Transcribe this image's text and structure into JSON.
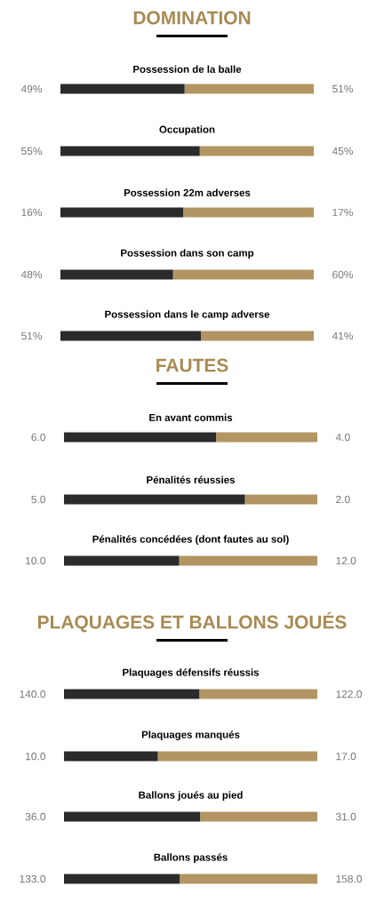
{
  "chart_data": [
    {
      "type": "bar",
      "orientation": "horizontal",
      "stacked": true,
      "title": "DOMINATION",
      "categories": [
        "Possession de la balle"
      ],
      "xlim": [
        0,
        100
      ],
      "tick_labels": false,
      "series": [
        {
          "color": "#2b2b2b",
          "values": [
            49
          ],
          "value_labels": [
            "49%"
          ]
        },
        {
          "color": "#b39563",
          "values": [
            51
          ],
          "value_labels": [
            "51%"
          ]
        }
      ]
    },
    {
      "type": "bar",
      "orientation": "horizontal",
      "stacked": true,
      "categories": [
        "Occupation"
      ],
      "xlim": [
        0,
        100
      ],
      "tick_labels": false,
      "series": [
        {
          "color": "#2b2b2b",
          "values": [
            55
          ],
          "value_labels": [
            "55%"
          ]
        },
        {
          "color": "#b39563",
          "values": [
            45
          ],
          "value_labels": [
            "45%"
          ]
        }
      ]
    },
    {
      "type": "bar",
      "orientation": "horizontal",
      "stacked": true,
      "categories": [
        "Possession 22m adverses"
      ],
      "xlim": [
        0,
        33
      ],
      "tick_labels": false,
      "series": [
        {
          "color": "#2b2b2b",
          "values": [
            16
          ],
          "value_labels": [
            "16%"
          ]
        },
        {
          "color": "#b39563",
          "values": [
            17
          ],
          "value_labels": [
            "17%"
          ]
        }
      ]
    },
    {
      "type": "bar",
      "orientation": "horizontal",
      "stacked": true,
      "categories": [
        "Possession dans son camp"
      ],
      "xlim": [
        0,
        108
      ],
      "tick_labels": false,
      "series": [
        {
          "color": "#2b2b2b",
          "values": [
            48
          ],
          "value_labels": [
            "48%"
          ]
        },
        {
          "color": "#b39563",
          "values": [
            60
          ],
          "value_labels": [
            "60%"
          ]
        }
      ]
    },
    {
      "type": "bar",
      "orientation": "horizontal",
      "stacked": true,
      "categories": [
        "Possession dans le camp adverse"
      ],
      "xlim": [
        0,
        92
      ],
      "tick_labels": false,
      "series": [
        {
          "color": "#2b2b2b",
          "values": [
            51
          ],
          "value_labels": [
            "51%"
          ]
        },
        {
          "color": "#b39563",
          "values": [
            41
          ],
          "value_labels": [
            "41%"
          ]
        }
      ]
    },
    {
      "type": "bar",
      "orientation": "horizontal",
      "stacked": true,
      "title": "FAUTES",
      "categories": [
        "En avant commis"
      ],
      "xlim": [
        0,
        10
      ],
      "tick_labels": false,
      "series": [
        {
          "color": "#2b2b2b",
          "values": [
            6
          ],
          "value_labels": [
            "6.0"
          ]
        },
        {
          "color": "#b39563",
          "values": [
            4
          ],
          "value_labels": [
            "4.0"
          ]
        }
      ]
    },
    {
      "type": "bar",
      "orientation": "horizontal",
      "stacked": true,
      "categories": [
        "Pénalités réussies"
      ],
      "xlim": [
        0,
        7
      ],
      "tick_labels": false,
      "series": [
        {
          "color": "#2b2b2b",
          "values": [
            5
          ],
          "value_labels": [
            "5.0"
          ]
        },
        {
          "color": "#b39563",
          "values": [
            2
          ],
          "value_labels": [
            "2.0"
          ]
        }
      ]
    },
    {
      "type": "bar",
      "orientation": "horizontal",
      "stacked": true,
      "categories": [
        "Pénalités concédées (dont fautes au sol)"
      ],
      "xlim": [
        0,
        22
      ],
      "tick_labels": false,
      "series": [
        {
          "color": "#2b2b2b",
          "values": [
            10
          ],
          "value_labels": [
            "10.0"
          ]
        },
        {
          "color": "#b39563",
          "values": [
            12
          ],
          "value_labels": [
            "12.0"
          ]
        }
      ]
    },
    {
      "type": "bar",
      "orientation": "horizontal",
      "stacked": true,
      "title": "PLAQUAGES ET BALLONS JOUÉS",
      "categories": [
        "Plaquages défensifs réussis"
      ],
      "xlim": [
        0,
        262
      ],
      "tick_labels": false,
      "series": [
        {
          "color": "#2b2b2b",
          "values": [
            140
          ],
          "value_labels": [
            "140.0"
          ]
        },
        {
          "color": "#b39563",
          "values": [
            122
          ],
          "value_labels": [
            "122.0"
          ]
        }
      ]
    },
    {
      "type": "bar",
      "orientation": "horizontal",
      "stacked": true,
      "categories": [
        "Plaquages manqués"
      ],
      "xlim": [
        0,
        27
      ],
      "tick_labels": false,
      "series": [
        {
          "color": "#2b2b2b",
          "values": [
            10
          ],
          "value_labels": [
            "10.0"
          ]
        },
        {
          "color": "#b39563",
          "values": [
            17
          ],
          "value_labels": [
            "17.0"
          ]
        }
      ]
    },
    {
      "type": "bar",
      "orientation": "horizontal",
      "stacked": true,
      "categories": [
        "Ballons joués au pied"
      ],
      "xlim": [
        0,
        67
      ],
      "tick_labels": false,
      "series": [
        {
          "color": "#2b2b2b",
          "values": [
            36
          ],
          "value_labels": [
            "36.0"
          ]
        },
        {
          "color": "#b39563",
          "values": [
            31
          ],
          "value_labels": [
            "31.0"
          ]
        }
      ]
    },
    {
      "type": "bar",
      "orientation": "horizontal",
      "stacked": true,
      "categories": [
        "Ballons passés"
      ],
      "xlim": [
        0,
        291
      ],
      "tick_labels": false,
      "series": [
        {
          "color": "#2b2b2b",
          "values": [
            133
          ],
          "value_labels": [
            "133.0"
          ]
        },
        {
          "color": "#b39563",
          "values": [
            158
          ],
          "value_labels": [
            "158.0"
          ]
        }
      ]
    }
  ]
}
